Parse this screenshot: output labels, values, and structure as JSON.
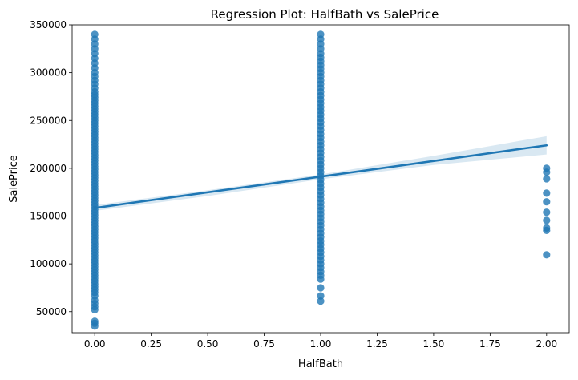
{
  "chart_data": {
    "type": "scatter",
    "title": "Regression Plot: HalfBath vs SalePrice",
    "xlabel": "HalfBath",
    "ylabel": "SalePrice",
    "xlim": [
      -0.1,
      2.1
    ],
    "ylim": [
      28000,
      350000
    ],
    "grid": false,
    "colors": {
      "points": "#1f77b4",
      "line": "#1f77b4",
      "band": "#1f77b4"
    },
    "xticks": [
      {
        "value": 0.0,
        "label": "0.00"
      },
      {
        "value": 0.25,
        "label": "0.25"
      },
      {
        "value": 0.5,
        "label": "0.50"
      },
      {
        "value": 0.75,
        "label": "0.75"
      },
      {
        "value": 1.0,
        "label": "1.00"
      },
      {
        "value": 1.25,
        "label": "1.25"
      },
      {
        "value": 1.5,
        "label": "1.50"
      },
      {
        "value": 1.75,
        "label": "1.75"
      },
      {
        "value": 2.0,
        "label": "2.00"
      }
    ],
    "yticks": [
      {
        "value": 50000,
        "label": "50000"
      },
      {
        "value": 100000,
        "label": "100000"
      },
      {
        "value": 150000,
        "label": "150000"
      },
      {
        "value": 200000,
        "label": "200000"
      },
      {
        "value": 250000,
        "label": "250000"
      },
      {
        "value": 300000,
        "label": "300000"
      },
      {
        "value": 350000,
        "label": "350000"
      }
    ],
    "points": [
      {
        "x": 0,
        "y": 34900
      },
      {
        "x": 0,
        "y": 37900
      },
      {
        "x": 0,
        "y": 40000
      },
      {
        "x": 0,
        "y": 52000
      },
      {
        "x": 0,
        "y": 55000
      },
      {
        "x": 0,
        "y": 58500
      },
      {
        "x": 0,
        "y": 62000
      },
      {
        "x": 0,
        "y": 66500
      },
      {
        "x": 0,
        "y": 70000
      },
      {
        "x": 0,
        "y": 73000
      },
      {
        "x": 0,
        "y": 76000
      },
      {
        "x": 0,
        "y": 79000
      },
      {
        "x": 0,
        "y": 82000
      },
      {
        "x": 0,
        "y": 85000
      },
      {
        "x": 0,
        "y": 88000
      },
      {
        "x": 0,
        "y": 91000
      },
      {
        "x": 0,
        "y": 94000
      },
      {
        "x": 0,
        "y": 97000
      },
      {
        "x": 0,
        "y": 100000
      },
      {
        "x": 0,
        "y": 103000
      },
      {
        "x": 0,
        "y": 106000
      },
      {
        "x": 0,
        "y": 109000
      },
      {
        "x": 0,
        "y": 112000
      },
      {
        "x": 0,
        "y": 115000
      },
      {
        "x": 0,
        "y": 118000
      },
      {
        "x": 0,
        "y": 121000
      },
      {
        "x": 0,
        "y": 124000
      },
      {
        "x": 0,
        "y": 127000
      },
      {
        "x": 0,
        "y": 130000
      },
      {
        "x": 0,
        "y": 133000
      },
      {
        "x": 0,
        "y": 136000
      },
      {
        "x": 0,
        "y": 139000
      },
      {
        "x": 0,
        "y": 142000
      },
      {
        "x": 0,
        "y": 145000
      },
      {
        "x": 0,
        "y": 148000
      },
      {
        "x": 0,
        "y": 151000
      },
      {
        "x": 0,
        "y": 154000
      },
      {
        "x": 0,
        "y": 157000
      },
      {
        "x": 0,
        "y": 160000
      },
      {
        "x": 0,
        "y": 163000
      },
      {
        "x": 0,
        "y": 166000
      },
      {
        "x": 0,
        "y": 169000
      },
      {
        "x": 0,
        "y": 172000
      },
      {
        "x": 0,
        "y": 175000
      },
      {
        "x": 0,
        "y": 178000
      },
      {
        "x": 0,
        "y": 181000
      },
      {
        "x": 0,
        "y": 184000
      },
      {
        "x": 0,
        "y": 187000
      },
      {
        "x": 0,
        "y": 190000
      },
      {
        "x": 0,
        "y": 193000
      },
      {
        "x": 0,
        "y": 196000
      },
      {
        "x": 0,
        "y": 199000
      },
      {
        "x": 0,
        "y": 202000
      },
      {
        "x": 0,
        "y": 205000
      },
      {
        "x": 0,
        "y": 208000
      },
      {
        "x": 0,
        "y": 211000
      },
      {
        "x": 0,
        "y": 214000
      },
      {
        "x": 0,
        "y": 217000
      },
      {
        "x": 0,
        "y": 220000
      },
      {
        "x": 0,
        "y": 223000
      },
      {
        "x": 0,
        "y": 226000
      },
      {
        "x": 0,
        "y": 229000
      },
      {
        "x": 0,
        "y": 232000
      },
      {
        "x": 0,
        "y": 235000
      },
      {
        "x": 0,
        "y": 238000
      },
      {
        "x": 0,
        "y": 241000
      },
      {
        "x": 0,
        "y": 244000
      },
      {
        "x": 0,
        "y": 247000
      },
      {
        "x": 0,
        "y": 250000
      },
      {
        "x": 0,
        "y": 253000
      },
      {
        "x": 0,
        "y": 256000
      },
      {
        "x": 0,
        "y": 259000
      },
      {
        "x": 0,
        "y": 262000
      },
      {
        "x": 0,
        "y": 265000
      },
      {
        "x": 0,
        "y": 268000
      },
      {
        "x": 0,
        "y": 271000
      },
      {
        "x": 0,
        "y": 274000
      },
      {
        "x": 0,
        "y": 277000
      },
      {
        "x": 0,
        "y": 280000
      },
      {
        "x": 0,
        "y": 284000
      },
      {
        "x": 0,
        "y": 288000
      },
      {
        "x": 0,
        "y": 292000
      },
      {
        "x": 0,
        "y": 296000
      },
      {
        "x": 0,
        "y": 300000
      },
      {
        "x": 0,
        "y": 305000
      },
      {
        "x": 0,
        "y": 310000
      },
      {
        "x": 0,
        "y": 315000
      },
      {
        "x": 0,
        "y": 320000
      },
      {
        "x": 0,
        "y": 325000
      },
      {
        "x": 0,
        "y": 330000
      },
      {
        "x": 0,
        "y": 335000
      },
      {
        "x": 0,
        "y": 340000
      },
      {
        "x": 1,
        "y": 61000
      },
      {
        "x": 1,
        "y": 66500
      },
      {
        "x": 1,
        "y": 75000
      },
      {
        "x": 1,
        "y": 84000
      },
      {
        "x": 1,
        "y": 88000
      },
      {
        "x": 1,
        "y": 92000
      },
      {
        "x": 1,
        "y": 96000
      },
      {
        "x": 1,
        "y": 100000
      },
      {
        "x": 1,
        "y": 104000
      },
      {
        "x": 1,
        "y": 108000
      },
      {
        "x": 1,
        "y": 112000
      },
      {
        "x": 1,
        "y": 116000
      },
      {
        "x": 1,
        "y": 120000
      },
      {
        "x": 1,
        "y": 124000
      },
      {
        "x": 1,
        "y": 128000
      },
      {
        "x": 1,
        "y": 132000
      },
      {
        "x": 1,
        "y": 136000
      },
      {
        "x": 1,
        "y": 140000
      },
      {
        "x": 1,
        "y": 144000
      },
      {
        "x": 1,
        "y": 148000
      },
      {
        "x": 1,
        "y": 152000
      },
      {
        "x": 1,
        "y": 156000
      },
      {
        "x": 1,
        "y": 160000
      },
      {
        "x": 1,
        "y": 164000
      },
      {
        "x": 1,
        "y": 168000
      },
      {
        "x": 1,
        "y": 172000
      },
      {
        "x": 1,
        "y": 176000
      },
      {
        "x": 1,
        "y": 180000
      },
      {
        "x": 1,
        "y": 184000
      },
      {
        "x": 1,
        "y": 188000
      },
      {
        "x": 1,
        "y": 192000
      },
      {
        "x": 1,
        "y": 196000
      },
      {
        "x": 1,
        "y": 200000
      },
      {
        "x": 1,
        "y": 204000
      },
      {
        "x": 1,
        "y": 208000
      },
      {
        "x": 1,
        "y": 212000
      },
      {
        "x": 1,
        "y": 216000
      },
      {
        "x": 1,
        "y": 220000
      },
      {
        "x": 1,
        "y": 224000
      },
      {
        "x": 1,
        "y": 228000
      },
      {
        "x": 1,
        "y": 232000
      },
      {
        "x": 1,
        "y": 236000
      },
      {
        "x": 1,
        "y": 240000
      },
      {
        "x": 1,
        "y": 244000
      },
      {
        "x": 1,
        "y": 248000
      },
      {
        "x": 1,
        "y": 252000
      },
      {
        "x": 1,
        "y": 256000
      },
      {
        "x": 1,
        "y": 260000
      },
      {
        "x": 1,
        "y": 264000
      },
      {
        "x": 1,
        "y": 268000
      },
      {
        "x": 1,
        "y": 272000
      },
      {
        "x": 1,
        "y": 276000
      },
      {
        "x": 1,
        "y": 280000
      },
      {
        "x": 1,
        "y": 284000
      },
      {
        "x": 1,
        "y": 288000
      },
      {
        "x": 1,
        "y": 292000
      },
      {
        "x": 1,
        "y": 296000
      },
      {
        "x": 1,
        "y": 300000
      },
      {
        "x": 1,
        "y": 304000
      },
      {
        "x": 1,
        "y": 308000
      },
      {
        "x": 1,
        "y": 312000
      },
      {
        "x": 1,
        "y": 316000
      },
      {
        "x": 1,
        "y": 320000
      },
      {
        "x": 1,
        "y": 325000
      },
      {
        "x": 1,
        "y": 330000
      },
      {
        "x": 1,
        "y": 335000
      },
      {
        "x": 1,
        "y": 340000
      },
      {
        "x": 2,
        "y": 109500
      },
      {
        "x": 2,
        "y": 135000
      },
      {
        "x": 2,
        "y": 137500
      },
      {
        "x": 2,
        "y": 145500
      },
      {
        "x": 2,
        "y": 154000
      },
      {
        "x": 2,
        "y": 164900
      },
      {
        "x": 2,
        "y": 174000
      },
      {
        "x": 2,
        "y": 189000
      },
      {
        "x": 2,
        "y": 196000
      },
      {
        "x": 2,
        "y": 200000
      }
    ],
    "regression": {
      "x": [
        0,
        2
      ],
      "y": [
        158500,
        224000
      ]
    },
    "confidence_band": {
      "x": [
        0,
        0.5,
        1,
        1.5,
        2
      ],
      "upper": [
        161500,
        177000,
        193500,
        213000,
        233500
      ],
      "lower": [
        155500,
        171000,
        188500,
        203500,
        214500
      ]
    }
  }
}
